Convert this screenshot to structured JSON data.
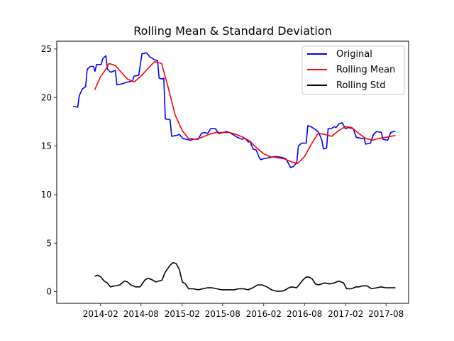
{
  "chart_data": {
    "type": "line",
    "title": "Rolling Mean & Standard Deviation",
    "xlabel": "",
    "ylabel": "",
    "xlim": [
      "2013-07-20",
      "2017-11-10"
    ],
    "ylim": [
      -1.2,
      25.8
    ],
    "x_ticks": [
      "2014-02",
      "2014-08",
      "2015-02",
      "2015-08",
      "2016-02",
      "2016-08",
      "2017-02",
      "2017-08"
    ],
    "y_ticks": [
      0,
      5,
      10,
      15,
      20,
      25
    ],
    "grid": false,
    "legend_position": "top-right",
    "series": [
      {
        "name": "Original",
        "color": "#0000ff",
        "points": [
          [
            "2013-10-01",
            19.1
          ],
          [
            "2013-10-22",
            19.0
          ],
          [
            "2013-10-29",
            20.2
          ],
          [
            "2013-11-12",
            20.9
          ],
          [
            "2013-11-26",
            21.1
          ],
          [
            "2013-12-03",
            22.9
          ],
          [
            "2013-12-17",
            23.2
          ],
          [
            "2013-12-31",
            23.2
          ],
          [
            "2014-01-07",
            22.7
          ],
          [
            "2014-01-14",
            23.4
          ],
          [
            "2014-02-04",
            23.4
          ],
          [
            "2014-02-11",
            24.0
          ],
          [
            "2014-02-25",
            24.3
          ],
          [
            "2014-03-04",
            22.9
          ],
          [
            "2014-03-18",
            22.6
          ],
          [
            "2014-04-08",
            22.8
          ],
          [
            "2014-04-15",
            21.3
          ],
          [
            "2014-05-06",
            21.4
          ],
          [
            "2014-06-03",
            21.6
          ],
          [
            "2014-06-24",
            21.7
          ],
          [
            "2014-07-01",
            22.2
          ],
          [
            "2014-07-22",
            22.3
          ],
          [
            "2014-08-05",
            24.5
          ],
          [
            "2014-08-26",
            24.6
          ],
          [
            "2014-09-09",
            24.2
          ],
          [
            "2014-09-30",
            23.9
          ],
          [
            "2014-10-14",
            23.8
          ],
          [
            "2014-10-21",
            22.0
          ],
          [
            "2014-11-04",
            21.9
          ],
          [
            "2014-11-11",
            22.0
          ],
          [
            "2014-11-18",
            17.8
          ],
          [
            "2014-12-09",
            17.7
          ],
          [
            "2014-12-16",
            16.0
          ],
          [
            "2015-01-06",
            16.1
          ],
          [
            "2015-01-20",
            16.2
          ],
          [
            "2015-02-03",
            15.8
          ],
          [
            "2015-02-17",
            15.7
          ],
          [
            "2015-03-10",
            15.6
          ],
          [
            "2015-03-24",
            15.7
          ],
          [
            "2015-04-14",
            15.7
          ],
          [
            "2015-04-28",
            16.3
          ],
          [
            "2015-05-12",
            16.4
          ],
          [
            "2015-05-26",
            16.3
          ],
          [
            "2015-06-09",
            16.8
          ],
          [
            "2015-06-30",
            16.8
          ],
          [
            "2015-07-14",
            16.3
          ],
          [
            "2015-08-04",
            16.4
          ],
          [
            "2015-08-18",
            16.5
          ],
          [
            "2015-09-01",
            16.4
          ],
          [
            "2015-09-15",
            16.2
          ],
          [
            "2015-10-06",
            15.9
          ],
          [
            "2015-10-27",
            15.7
          ],
          [
            "2015-11-10",
            15.8
          ],
          [
            "2015-11-24",
            15.4
          ],
          [
            "2015-12-01",
            15.5
          ],
          [
            "2015-12-15",
            14.7
          ],
          [
            "2015-12-29",
            14.6
          ],
          [
            "2016-01-12",
            13.8
          ],
          [
            "2016-01-19",
            13.6
          ],
          [
            "2016-02-02",
            13.7
          ],
          [
            "2016-02-23",
            13.8
          ],
          [
            "2016-03-15",
            13.9
          ],
          [
            "2016-04-05",
            13.9
          ],
          [
            "2016-04-26",
            13.8
          ],
          [
            "2016-05-10",
            13.7
          ],
          [
            "2016-05-31",
            12.8
          ],
          [
            "2016-06-14",
            12.9
          ],
          [
            "2016-06-28",
            13.3
          ],
          [
            "2016-07-05",
            15.0
          ],
          [
            "2016-07-19",
            15.3
          ],
          [
            "2016-08-09",
            15.3
          ],
          [
            "2016-08-16",
            17.1
          ],
          [
            "2016-08-30",
            17.0
          ],
          [
            "2016-09-20",
            16.7
          ],
          [
            "2016-10-04",
            16.4
          ],
          [
            "2016-10-18",
            15.6
          ],
          [
            "2016-10-25",
            14.7
          ],
          [
            "2016-11-08",
            14.8
          ],
          [
            "2016-11-15",
            16.8
          ],
          [
            "2016-11-29",
            16.8
          ],
          [
            "2016-12-13",
            17.0
          ],
          [
            "2016-12-20",
            16.9
          ],
          [
            "2017-01-03",
            17.3
          ],
          [
            "2017-01-17",
            17.4
          ],
          [
            "2017-01-31",
            16.8
          ],
          [
            "2017-02-14",
            16.9
          ],
          [
            "2017-03-07",
            16.8
          ],
          [
            "2017-03-21",
            15.9
          ],
          [
            "2017-04-11",
            15.8
          ],
          [
            "2017-04-25",
            15.8
          ],
          [
            "2017-05-02",
            15.2
          ],
          [
            "2017-05-23",
            15.3
          ],
          [
            "2017-06-06",
            16.2
          ],
          [
            "2017-06-20",
            16.5
          ],
          [
            "2017-07-11",
            16.4
          ],
          [
            "2017-07-18",
            15.7
          ],
          [
            "2017-08-08",
            15.6
          ],
          [
            "2017-08-22",
            16.4
          ],
          [
            "2017-09-05",
            16.5
          ],
          [
            "2017-09-12",
            16.5
          ]
        ]
      },
      {
        "name": "Rolling Mean",
        "color": "#ff0000",
        "points": [
          [
            "2014-01-06",
            20.8
          ],
          [
            "2014-01-31",
            22.1
          ],
          [
            "2014-02-27",
            23.0
          ],
          [
            "2014-03-11",
            23.5
          ],
          [
            "2014-04-08",
            23.3
          ],
          [
            "2014-05-01",
            22.7
          ],
          [
            "2014-06-01",
            21.9
          ],
          [
            "2014-07-01",
            21.6
          ],
          [
            "2014-08-01",
            22.2
          ],
          [
            "2014-09-01",
            23.0
          ],
          [
            "2014-10-01",
            23.7
          ],
          [
            "2014-11-01",
            23.5
          ],
          [
            "2014-12-01",
            21.0
          ],
          [
            "2015-01-01",
            18.2
          ],
          [
            "2015-02-01",
            16.6
          ],
          [
            "2015-03-01",
            15.8
          ],
          [
            "2015-04-01",
            15.7
          ],
          [
            "2015-05-01",
            15.9
          ],
          [
            "2015-06-01",
            16.2
          ],
          [
            "2015-07-01",
            16.4
          ],
          [
            "2015-08-01",
            16.4
          ],
          [
            "2015-09-01",
            16.4
          ],
          [
            "2015-10-01",
            16.2
          ],
          [
            "2015-11-01",
            15.9
          ],
          [
            "2015-12-01",
            15.5
          ],
          [
            "2016-01-01",
            14.8
          ],
          [
            "2016-02-01",
            14.2
          ],
          [
            "2016-03-01",
            13.9
          ],
          [
            "2016-04-01",
            13.8
          ],
          [
            "2016-05-01",
            13.7
          ],
          [
            "2016-06-01",
            13.4
          ],
          [
            "2016-07-01",
            13.2
          ],
          [
            "2016-08-01",
            13.9
          ],
          [
            "2016-09-01",
            15.2
          ],
          [
            "2016-10-01",
            16.3
          ],
          [
            "2016-11-01",
            16.2
          ],
          [
            "2016-12-01",
            16.0
          ],
          [
            "2017-01-01",
            16.6
          ],
          [
            "2017-02-01",
            17.0
          ],
          [
            "2017-03-01",
            16.9
          ],
          [
            "2017-04-01",
            16.3
          ],
          [
            "2017-05-01",
            15.8
          ],
          [
            "2017-06-01",
            15.6
          ],
          [
            "2017-07-01",
            15.8
          ],
          [
            "2017-08-01",
            15.9
          ],
          [
            "2017-09-12",
            16.1
          ]
        ]
      },
      {
        "name": "Rolling Std",
        "color": "#000000",
        "points": [
          [
            "2014-01-06",
            1.6
          ],
          [
            "2014-01-20",
            1.7
          ],
          [
            "2014-02-03",
            1.5
          ],
          [
            "2014-02-17",
            1.1
          ],
          [
            "2014-03-03",
            0.9
          ],
          [
            "2014-03-17",
            0.5
          ],
          [
            "2014-04-07",
            0.6
          ],
          [
            "2014-04-28",
            0.7
          ],
          [
            "2014-05-19",
            1.1
          ],
          [
            "2014-06-02",
            1.0
          ],
          [
            "2014-06-16",
            0.7
          ],
          [
            "2014-07-07",
            0.5
          ],
          [
            "2014-07-28",
            0.5
          ],
          [
            "2014-08-18",
            1.2
          ],
          [
            "2014-09-01",
            1.4
          ],
          [
            "2014-09-22",
            1.2
          ],
          [
            "2014-10-06",
            1.0
          ],
          [
            "2014-10-20",
            1.1
          ],
          [
            "2014-11-03",
            1.2
          ],
          [
            "2014-11-17",
            2.0
          ],
          [
            "2014-12-08",
            2.7
          ],
          [
            "2014-12-22",
            3.0
          ],
          [
            "2015-01-05",
            2.9
          ],
          [
            "2015-01-19",
            2.3
          ],
          [
            "2015-02-02",
            1.0
          ],
          [
            "2015-02-16",
            0.8
          ],
          [
            "2015-03-02",
            0.3
          ],
          [
            "2015-03-23",
            0.3
          ],
          [
            "2015-04-13",
            0.2
          ],
          [
            "2015-05-04",
            0.3
          ],
          [
            "2015-05-25",
            0.4
          ],
          [
            "2015-06-15",
            0.4
          ],
          [
            "2015-07-06",
            0.3
          ],
          [
            "2015-07-27",
            0.2
          ],
          [
            "2015-08-24",
            0.2
          ],
          [
            "2015-09-21",
            0.2
          ],
          [
            "2015-10-12",
            0.3
          ],
          [
            "2015-11-02",
            0.3
          ],
          [
            "2015-11-23",
            0.2
          ],
          [
            "2015-12-14",
            0.4
          ],
          [
            "2016-01-04",
            0.7
          ],
          [
            "2016-01-25",
            0.7
          ],
          [
            "2016-02-15",
            0.5
          ],
          [
            "2016-03-07",
            0.2
          ],
          [
            "2016-03-28",
            0.05
          ],
          [
            "2016-04-18",
            0.05
          ],
          [
            "2016-05-02",
            0.1
          ],
          [
            "2016-05-23",
            0.4
          ],
          [
            "2016-06-06",
            0.5
          ],
          [
            "2016-06-27",
            0.4
          ],
          [
            "2016-07-11",
            0.8
          ],
          [
            "2016-07-25",
            1.2
          ],
          [
            "2016-08-08",
            1.5
          ],
          [
            "2016-08-22",
            1.5
          ],
          [
            "2016-09-05",
            1.3
          ],
          [
            "2016-09-19",
            0.8
          ],
          [
            "2016-10-03",
            0.7
          ],
          [
            "2016-10-17",
            0.8
          ],
          [
            "2016-10-31",
            0.9
          ],
          [
            "2016-11-21",
            0.8
          ],
          [
            "2016-12-12",
            0.9
          ],
          [
            "2017-01-02",
            1.1
          ],
          [
            "2017-01-23",
            0.9
          ],
          [
            "2017-02-06",
            0.3
          ],
          [
            "2017-02-27",
            0.3
          ],
          [
            "2017-03-20",
            0.5
          ],
          [
            "2017-04-03",
            0.5
          ],
          [
            "2017-04-17",
            0.6
          ],
          [
            "2017-05-08",
            0.6
          ],
          [
            "2017-05-29",
            0.3
          ],
          [
            "2017-06-19",
            0.4
          ],
          [
            "2017-07-10",
            0.5
          ],
          [
            "2017-07-31",
            0.4
          ],
          [
            "2017-08-21",
            0.4
          ],
          [
            "2017-09-12",
            0.4
          ]
        ]
      }
    ]
  }
}
